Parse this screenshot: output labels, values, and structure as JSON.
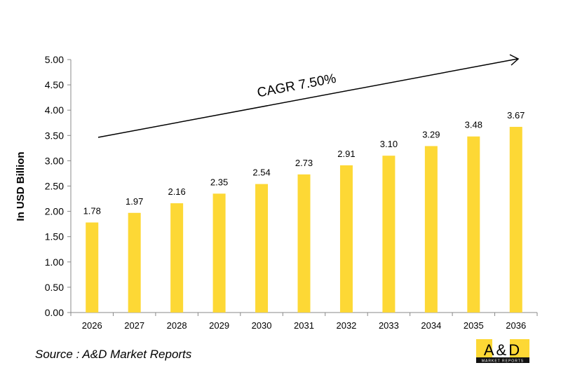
{
  "chart_data": {
    "type": "bar",
    "categories": [
      "2026",
      "2027",
      "2028",
      "2029",
      "2030",
      "2031",
      "2032",
      "2033",
      "2034",
      "2035",
      "2036"
    ],
    "values": [
      1.78,
      1.97,
      2.16,
      2.35,
      2.54,
      2.73,
      2.91,
      3.1,
      3.29,
      3.48,
      3.67
    ],
    "value_labels": [
      "1.78",
      "1.97",
      "2.16",
      "2.35",
      "2.54",
      "2.73",
      "2.91",
      "3.10",
      "3.29",
      "3.48",
      "3.67"
    ],
    "xlabel": "",
    "ylabel": "In USD Billion",
    "ylim": [
      0,
      5
    ],
    "yticks": [
      "0.00",
      "0.50",
      "1.00",
      "1.50",
      "2.00",
      "2.50",
      "3.00",
      "3.50",
      "4.00",
      "4.50",
      "5.00"
    ],
    "grid": false,
    "annotation": "CAGR 7.50%",
    "bar_color": "#FDD835"
  },
  "source": "Source : A&D Market Reports",
  "logo": {
    "text": "A&D",
    "subtext": "MARKET REPORTS",
    "color": "#FDD835"
  }
}
